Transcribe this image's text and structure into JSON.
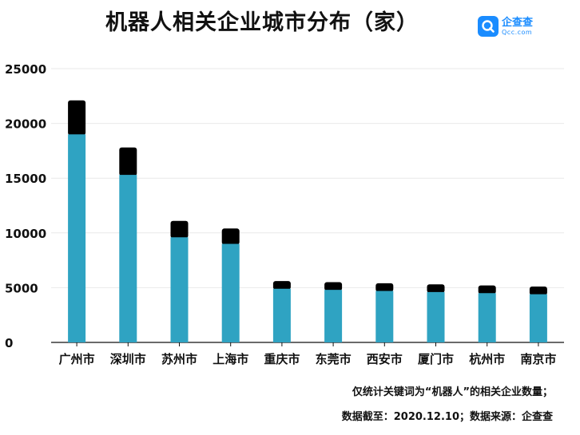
{
  "title": "机器人相关企业城市分布（家）",
  "logo": {
    "name": "企查查",
    "sub": "Qcc.com",
    "icon": "qcc-logo-icon",
    "color": "#1a8cff"
  },
  "footnotes": [
    "仅统计关键词为“机器人”的相关企业数量；",
    "数据截至：2020.12.10；数据来源：企查查"
  ],
  "colors": {
    "bar": "#2fa3c2",
    "cap": "#000000",
    "grid": "#e9e9e9",
    "axis": "#111111"
  },
  "chart_data": {
    "type": "bar",
    "categories": [
      "广州市",
      "深圳市",
      "苏州市",
      "上海市",
      "重庆市",
      "东莞市",
      "西安市",
      "厦门市",
      "杭州市",
      "南京市"
    ],
    "series": [
      {
        "values": [
          19000,
          15300,
          9600,
          9000,
          4900,
          4800,
          4700,
          4600,
          4500,
          4400
        ],
        "color": "#2fa3c2"
      },
      {
        "values": [
          3100,
          2500,
          1500,
          1400,
          700,
          700,
          700,
          700,
          700,
          700
        ],
        "color": "#000000"
      }
    ],
    "stacked": true,
    "ylim": [
      0,
      25000
    ],
    "yticks": [
      "0",
      "5000",
      "10000",
      "15000",
      "20000",
      "25000"
    ],
    "grid": true
  }
}
